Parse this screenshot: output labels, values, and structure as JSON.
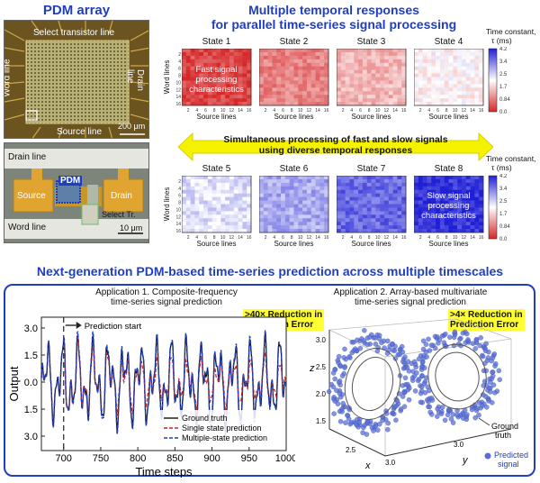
{
  "pdm": {
    "title": "PDM array",
    "select_line": "Select transistor line",
    "word_line": "Word line",
    "drain_line": "Drain line",
    "source_line": "Source line",
    "scale_top": "200 μm",
    "zoom_drain_line": "Drain line",
    "zoom_pdm": "PDM",
    "zoom_source": "Source",
    "zoom_drain": "Drain",
    "zoom_select": "Select Tr.",
    "zoom_word_line": "Word line",
    "scale_bottom": "10 μm"
  },
  "top_title": [
    "Multiple temporal responses",
    "for parallel time-series signal processing"
  ],
  "heatmaps": {
    "ylabel": "Word lines",
    "xlabel": "Source lines",
    "xticks": [
      "2",
      "4",
      "6",
      "8",
      "10",
      "12",
      "14",
      "16"
    ],
    "yticks": [
      "2",
      "4",
      "6",
      "8",
      "10",
      "12",
      "14",
      "16"
    ],
    "states": [
      "State 1",
      "State 2",
      "State 3",
      "State 4",
      "State 5",
      "State 6",
      "State 7",
      "State 8"
    ],
    "state_tau_ms": [
      0.3,
      0.9,
      1.4,
      2.0,
      2.4,
      2.9,
      3.5,
      4.0
    ],
    "fast_label": [
      "Fast signal",
      "processing",
      "characteristics"
    ],
    "slow_label": [
      "Slow signal",
      "processing",
      "characteristics"
    ],
    "colorbar_title": [
      "Time constant,",
      "τ (ms)"
    ],
    "colorbar_ticks": [
      "4.2",
      "3.4",
      "2.5",
      "1.7",
      "0.84",
      "0.0"
    ],
    "colors": {
      "low": "#d62728",
      "mid": "#ffffff",
      "high": "#1f1fd6"
    }
  },
  "arrow_text": [
    "Simultaneous processing of fast and slow signals",
    "using diverse temporal responses"
  ],
  "bottom_title": "Next-generation PDM-based time-series prediction across multiple timescales",
  "app1": {
    "title": [
      "Application 1. Composite-frequency",
      "time-series signal prediction"
    ],
    "callout": [
      ">40× Reduction in",
      "Prediction Error"
    ],
    "ylabel": "Output",
    "xlabel": "Time steps",
    "prediction_start": "Prediction start",
    "legend": [
      "Ground truth",
      "Single state prediction",
      "Multiple-state prediction"
    ],
    "colors": {
      "truth": "#111111",
      "single": "#c62828",
      "multi": "#1f3fbf"
    }
  },
  "app2": {
    "title": [
      "Application 2. Array-based multivariate",
      "time-series signal prediction"
    ],
    "callout": [
      ">4× Reduction in",
      "Prediction Error"
    ],
    "axis_z": "z",
    "axis_x": "x",
    "axis_y": "y",
    "z_ticks": [
      "3.0",
      "2.5",
      "2.0",
      "1.5"
    ],
    "x_ticks": [
      "2.5",
      "3.0"
    ],
    "y_tick": "3.0",
    "legend_truth": [
      "Ground",
      "truth"
    ],
    "legend_pred": [
      "Predicted",
      "signal"
    ]
  },
  "chart_data": {
    "type": "line",
    "title": "",
    "xlabel": "Time steps",
    "ylabel": "Output",
    "xlim": [
      670,
      1000
    ],
    "ylim": [
      -3.8,
      3.6
    ],
    "xticks": [
      700,
      750,
      800,
      850,
      900,
      950,
      1000
    ],
    "yticks": [
      3.0,
      1.5,
      0.0,
      1.5,
      3.0
    ],
    "prediction_start_x": 700,
    "series": [
      {
        "name": "Ground truth"
      },
      {
        "name": "Single state prediction"
      },
      {
        "name": "Multiple-state prediction"
      }
    ]
  }
}
